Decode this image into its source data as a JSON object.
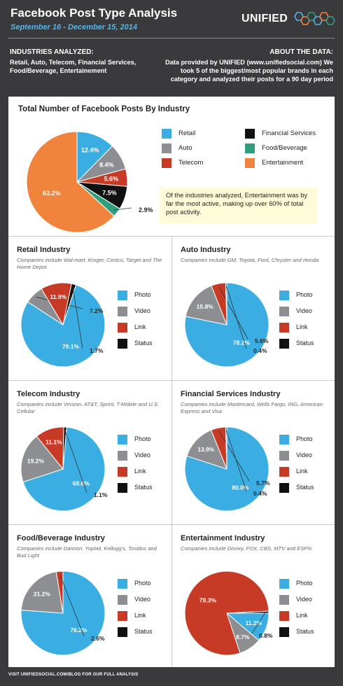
{
  "header": {
    "title": "Facebook Post Type Analysis",
    "subtitle": "September 16 - December 15, 2014",
    "logo_text": "UNIFIED",
    "industries_heading": "INDUSTRIES ANALYZED:",
    "industries_text": "Retail, Auto, Telecom, Financial Services, Food/Beverage, Entertainement",
    "about_heading": "ABOUT THE DATA:",
    "about_text": "Data provided by UNIFIED (www.unifiedsocial.com) We took 5 of the biggest/most popular brands in each category and analyzed their posts for a 90 day period"
  },
  "colors": {
    "photo": "#3aaee3",
    "video": "#8d8e92",
    "link": "#c63a26",
    "status": "#111111",
    "retail": "#3aaee3",
    "auto": "#8d8e92",
    "telecom": "#c63a26",
    "financial": "#111111",
    "food": "#2e9e7f",
    "entertainment": "#f0843d"
  },
  "callout": "Of the industries analyzed, Entertainment was by far the most active, making up over 60% of total post activity.",
  "footer": "VISIT UNIFIEDSOCIAL.COM/BLOG FOR OUR FULL ANALYSIS",
  "chart_data": [
    {
      "type": "pie",
      "title": "Total Number of Facebook Posts By Industry",
      "categories": [
        "Retail",
        "Auto",
        "Telecom",
        "Financial Services",
        "Food/Beverage",
        "Entertainment"
      ],
      "values": [
        12.4,
        8.4,
        5.6,
        7.5,
        2.9,
        63.2
      ],
      "labels": [
        "12.4%",
        "8.4%",
        "5.6%",
        "7.5%",
        "2.9%",
        "63.2%"
      ],
      "legend": "right"
    },
    {
      "type": "pie",
      "title": "Retail Industry",
      "subtitle": "Companies include Wal-mart, Kroger, Costco, Target and The  Home Depot",
      "categories": [
        "Photo",
        "Video",
        "Link",
        "Status"
      ],
      "values": [
        79.1,
        7.2,
        11.9,
        1.7
      ],
      "labels": [
        "79.1%",
        "7.2%",
        "11.9%",
        "1.7%"
      ],
      "legend": "right"
    },
    {
      "type": "pie",
      "title": "Auto Industry",
      "subtitle": "Companies include GM, Toyota, Ford, Chrysler and Honda",
      "categories": [
        "Photo",
        "Video",
        "Link",
        "Status"
      ],
      "values": [
        78.2,
        15.8,
        5.6,
        0.4
      ],
      "labels": [
        "78.2%",
        "15.8%",
        "5.6%",
        "0.4%"
      ],
      "legend": "right"
    },
    {
      "type": "pie",
      "title": "Telecom Industry",
      "subtitle": "Companies include Verizon, AT&T, Sprint, T-Mobile and U.S. Cellular",
      "categories": [
        "Photo",
        "Video",
        "Link",
        "Status"
      ],
      "values": [
        68.6,
        19.2,
        11.1,
        1.1
      ],
      "labels": [
        "68.6%",
        "19.2%",
        "11.1%",
        "1.1%"
      ],
      "legend": "right"
    },
    {
      "type": "pie",
      "title": "Financial Services Industry",
      "subtitle": "Companies include Mastercard, Wells Fargo, ING, American Express and Visa",
      "categories": [
        "Photo",
        "Video",
        "Link",
        "Status"
      ],
      "values": [
        80.0,
        13.9,
        5.7,
        0.4
      ],
      "labels": [
        "80.0%",
        "13.9%",
        "5.7%",
        "0.4%"
      ],
      "legend": "right"
    },
    {
      "type": "pie",
      "title": "Food/Beverage Industry",
      "subtitle": "Companies include Dannon, Yoplait, Kellogg's, Tostitos and Bud Light",
      "categories": [
        "Photo",
        "Video",
        "Link",
        "Status"
      ],
      "values": [
        76.2,
        21.2,
        2.6,
        0.0
      ],
      "labels": [
        "76.2%",
        "21.2%",
        "2.6%",
        ""
      ],
      "legend": "right"
    },
    {
      "type": "pie",
      "title": "Entertainment Industry",
      "subtitle": "Companies include Disney, FOX, CBS, MTV and ESPN",
      "categories": [
        "Photo",
        "Video",
        "Link",
        "Status"
      ],
      "values": [
        11.2,
        8.7,
        79.3,
        0.8
      ],
      "labels": [
        "11.2%",
        "8.7%",
        "79.3%",
        "0.8%"
      ],
      "legend": "right"
    }
  ]
}
